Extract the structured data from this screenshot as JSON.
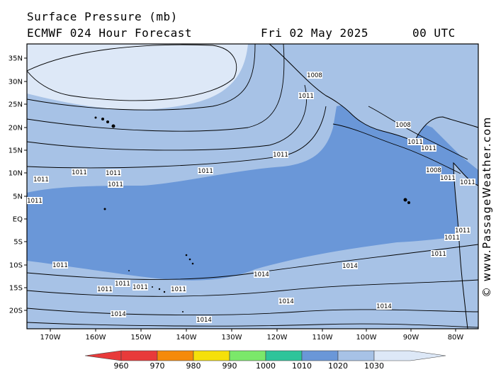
{
  "header": {
    "title": "Surface Pressure (mb)",
    "model": "ECMWF 024 Hour Forecast",
    "date": "Fri 02 May 2025",
    "time": "00 UTC"
  },
  "axes": {
    "lat_labels": [
      "35N",
      "30N",
      "25N",
      "20N",
      "15N",
      "10N",
      "5N",
      "EQ",
      "5S",
      "10S",
      "15S",
      "20S"
    ],
    "lon_labels": [
      "170W",
      "160W",
      "150W",
      "140W",
      "130W",
      "120W",
      "110W",
      "100W",
      "90W",
      "80W"
    ]
  },
  "contour_labels": [
    "1011",
    "1011",
    "1011",
    "1011",
    "1011",
    "1011",
    "1011",
    "1011",
    "1011",
    "1011",
    "1011",
    "1011",
    "1014",
    "1014",
    "1014",
    "1014",
    "1014",
    "1014",
    "1011",
    "1008",
    "1008",
    "1011",
    "1011",
    "1011",
    "1008",
    "1011",
    "1011",
    "1011",
    "1011"
  ],
  "colorbar": {
    "labels": [
      "960",
      "970",
      "980",
      "990",
      "1000",
      "1010",
      "1020",
      "1030"
    ],
    "colors": [
      "#e83a3a",
      "#f58a0a",
      "#f5e00a",
      "#7be86a",
      "#2ec49a",
      "#6a97d8",
      "#a7c2e6",
      "#dde8f7"
    ]
  },
  "credit": "© www.PassageWeather.com"
}
